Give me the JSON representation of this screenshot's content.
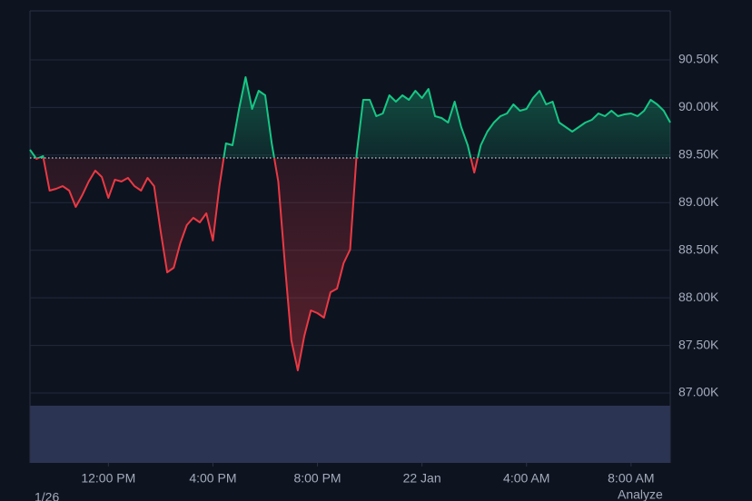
{
  "chart_data": {
    "type": "baseline-line",
    "up_color": "#16c784",
    "down_color": "#ea3943",
    "baseline": 89470,
    "xlim": [
      9,
      33.5
    ],
    "xticks": [
      {
        "value": 12,
        "label": "12:00 PM"
      },
      {
        "value": 16,
        "label": "4:00 PM"
      },
      {
        "value": 20,
        "label": "8:00 PM"
      },
      {
        "value": 24,
        "label": "22 Jan"
      },
      {
        "value": 28,
        "label": "4:00 AM"
      },
      {
        "value": 32,
        "label": "8:00 AM"
      }
    ],
    "ylim": [
      86266,
      91015
    ],
    "yticks": [
      {
        "value": 87000,
        "label": "87.00K"
      },
      {
        "value": 87500,
        "label": "87.50K"
      },
      {
        "value": 88000,
        "label": "88.00K"
      },
      {
        "value": 88500,
        "label": "88.50K"
      },
      {
        "value": 89000,
        "label": "89.00K"
      },
      {
        "value": 89500,
        "label": "89.50K"
      },
      {
        "value": 90000,
        "label": "90.00K"
      },
      {
        "value": 90500,
        "label": "90.50K"
      }
    ],
    "grid": true,
    "x": [
      9,
      9.25,
      9.5,
      9.75,
      10,
      10.25,
      10.5,
      10.75,
      11,
      11.25,
      11.5,
      11.75,
      12,
      12.25,
      12.5,
      12.75,
      13,
      13.25,
      13.5,
      13.75,
      14,
      14.25,
      14.5,
      14.75,
      15,
      15.25,
      15.5,
      15.75,
      16,
      16.25,
      16.5,
      16.75,
      17,
      17.25,
      17.5,
      17.75,
      18,
      18.25,
      18.5,
      18.75,
      19,
      19.25,
      19.5,
      19.75,
      20,
      20.25,
      20.5,
      20.75,
      21,
      21.25,
      21.5,
      21.75,
      22,
      22.25,
      22.5,
      22.75,
      23,
      23.25,
      23.5,
      23.75,
      24,
      24.25,
      24.5,
      24.75,
      25,
      25.25,
      25.5,
      25.75,
      26,
      26.25,
      26.5,
      26.75,
      27,
      27.25,
      27.5,
      27.75,
      28,
      28.25,
      28.5,
      28.75,
      29,
      29.25,
      29.5,
      29.75,
      30,
      30.25,
      30.5,
      30.75,
      31,
      31.25,
      31.5,
      31.75,
      32,
      32.25,
      32.5,
      32.75,
      33,
      33.25,
      33.5
    ],
    "values": [
      89556,
      89461,
      89489,
      89127,
      89146,
      89174,
      89127,
      88955,
      89079,
      89222,
      89337,
      89270,
      89050,
      89241,
      89222,
      89260,
      89174,
      89127,
      89260,
      89174,
      88698,
      88268,
      88316,
      88574,
      88764,
      88841,
      88793,
      88888,
      88602,
      89174,
      89623,
      89604,
      89985,
      90319,
      89985,
      90176,
      90128,
      89623,
      89222,
      88364,
      87553,
      87238,
      87601,
      87868,
      87839,
      87792,
      88059,
      88097,
      88364,
      88507,
      89508,
      90080,
      90080,
      89909,
      89937,
      90128,
      90061,
      90128,
      90080,
      90176,
      90100,
      90195,
      89909,
      89890,
      89842,
      90061,
      89794,
      89604,
      89317,
      89604,
      89747,
      89842,
      89909,
      89937,
      90033,
      89966,
      89985,
      90100,
      90176,
      90033,
      90061,
      89842,
      89794,
      89747,
      89794,
      89842,
      89871,
      89937,
      89909,
      89966,
      89909,
      89928,
      89937,
      89909,
      89966,
      90080,
      90033,
      89966,
      89842
    ],
    "footer_left": "1/26",
    "footer_right": "Analyze"
  }
}
